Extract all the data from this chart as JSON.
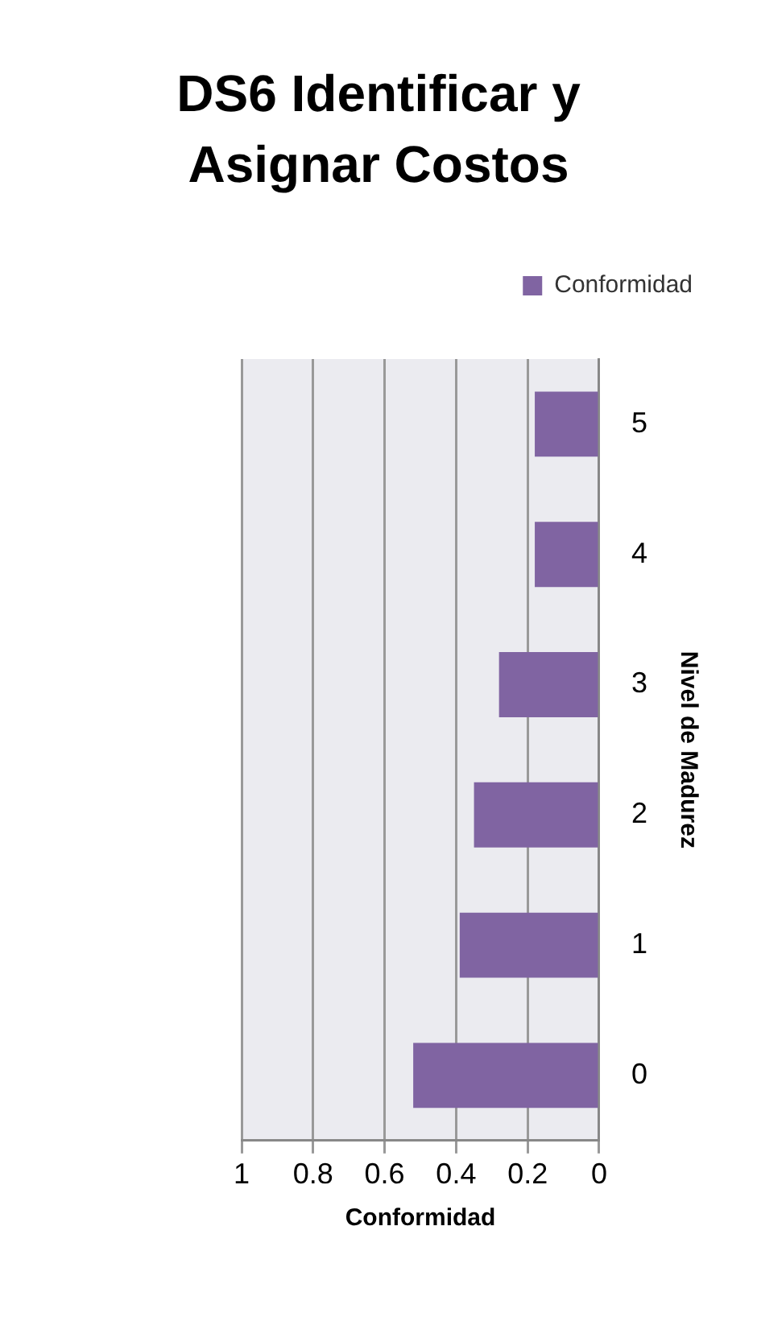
{
  "chart_data": {
    "type": "bar",
    "orientation": "horizontal",
    "title": "DS6  Identificar y Asignar Costos",
    "xlabel": "Conformidad",
    "ylabel": "Nivel de Madurez",
    "categories": [
      "5",
      "4",
      "3",
      "2",
      "1",
      "0"
    ],
    "series": [
      {
        "name": "Conformidad",
        "color": "#8064a2",
        "values": [
          0.18,
          0.18,
          0.28,
          0.35,
          0.39,
          0.52
        ]
      }
    ],
    "xlim": [
      1,
      0
    ],
    "xticks": [
      0,
      0.2,
      0.4,
      0.6,
      0.8,
      1
    ],
    "grid": "x",
    "legend": "top right"
  }
}
